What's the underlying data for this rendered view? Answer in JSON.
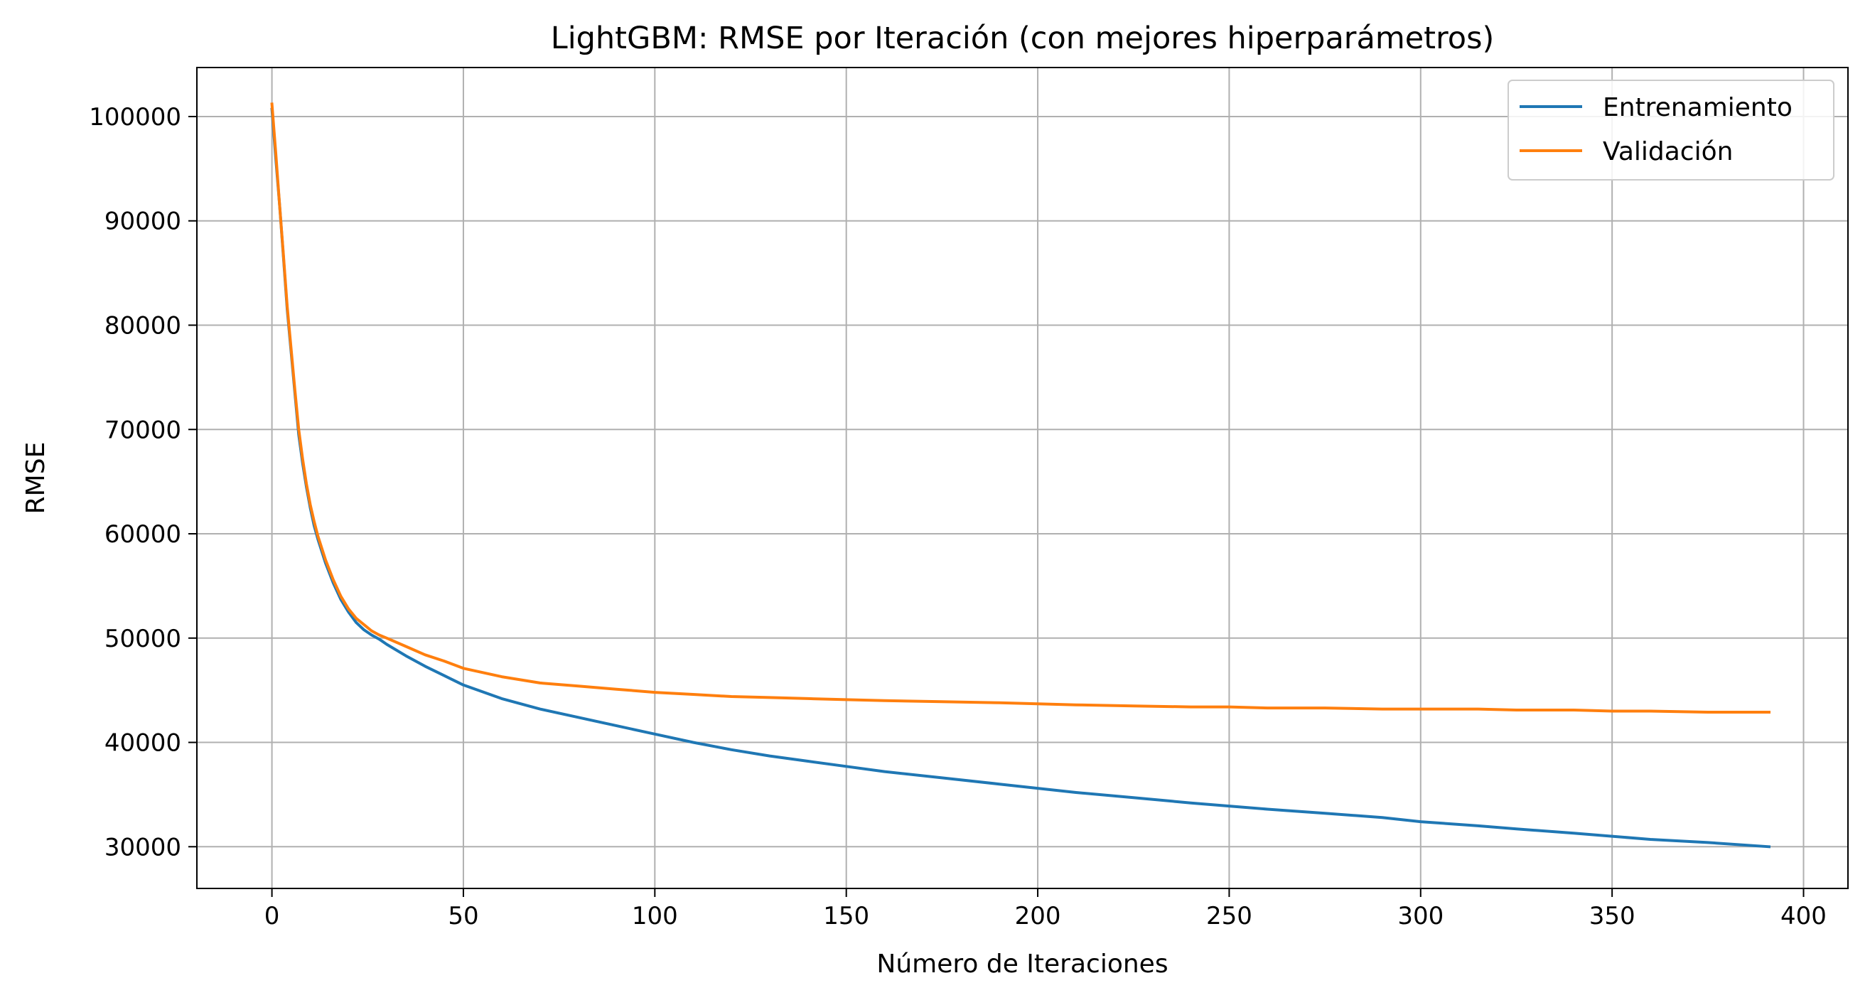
{
  "chart_data": {
    "type": "line",
    "title": "LightGBM: RMSE por Iteración (con mejores hiperparámetros)",
    "xlabel": "Número de Iteraciones",
    "ylabel": "RMSE",
    "xlim": [
      -19.6,
      411.6
    ],
    "ylim": [
      26000,
      104700
    ],
    "xticks": [
      0,
      50,
      100,
      150,
      200,
      250,
      300,
      350,
      400
    ],
    "yticks": [
      30000,
      40000,
      50000,
      60000,
      70000,
      80000,
      90000,
      100000
    ],
    "grid": true,
    "legend_position": "upper right",
    "series": [
      {
        "name": "Entrenamiento",
        "color": "#1f77b4",
        "x": [
          0,
          1,
          2,
          3,
          4,
          5,
          6,
          7,
          8,
          9,
          10,
          11,
          12,
          14,
          16,
          18,
          20,
          22,
          24,
          26,
          28,
          30,
          35,
          40,
          45,
          50,
          60,
          70,
          80,
          90,
          100,
          110,
          120,
          130,
          140,
          150,
          160,
          175,
          190,
          200,
          210,
          225,
          240,
          250,
          260,
          275,
          290,
          300,
          315,
          325,
          340,
          350,
          360,
          375,
          391
        ],
        "y": [
          100700,
          96000,
          91500,
          86500,
          81500,
          77500,
          73500,
          69500,
          66800,
          64500,
          62500,
          60800,
          59500,
          57200,
          55300,
          53700,
          52500,
          51500,
          50800,
          50300,
          49900,
          49400,
          48300,
          47300,
          46400,
          45500,
          44200,
          43200,
          42400,
          41600,
          40800,
          40000,
          39300,
          38700,
          38200,
          37700,
          37200,
          36600,
          36000,
          35600,
          35200,
          34700,
          34200,
          33900,
          33600,
          33200,
          32800,
          32400,
          32000,
          31700,
          31300,
          31000,
          30700,
          30400,
          30000
        ]
      },
      {
        "name": "Validación",
        "color": "#ff7f0e",
        "x": [
          0,
          1,
          2,
          3,
          4,
          5,
          6,
          7,
          8,
          9,
          10,
          11,
          12,
          14,
          16,
          18,
          20,
          22,
          24,
          26,
          28,
          30,
          35,
          40,
          45,
          50,
          60,
          70,
          80,
          90,
          100,
          110,
          120,
          130,
          140,
          150,
          160,
          175,
          190,
          200,
          210,
          225,
          240,
          250,
          260,
          275,
          290,
          300,
          315,
          325,
          340,
          350,
          360,
          375,
          391
        ],
        "y": [
          101200,
          96500,
          91500,
          86700,
          81800,
          77800,
          73800,
          70000,
          67200,
          64800,
          62800,
          61200,
          59800,
          57500,
          55600,
          54000,
          52800,
          51900,
          51300,
          50700,
          50300,
          50000,
          49200,
          48400,
          47800,
          47100,
          46300,
          45700,
          45400,
          45100,
          44800,
          44600,
          44400,
          44300,
          44200,
          44100,
          44000,
          43900,
          43800,
          43700,
          43600,
          43500,
          43400,
          43400,
          43300,
          43300,
          43200,
          43200,
          43200,
          43100,
          43100,
          43000,
          43000,
          42900,
          42900
        ]
      }
    ]
  }
}
